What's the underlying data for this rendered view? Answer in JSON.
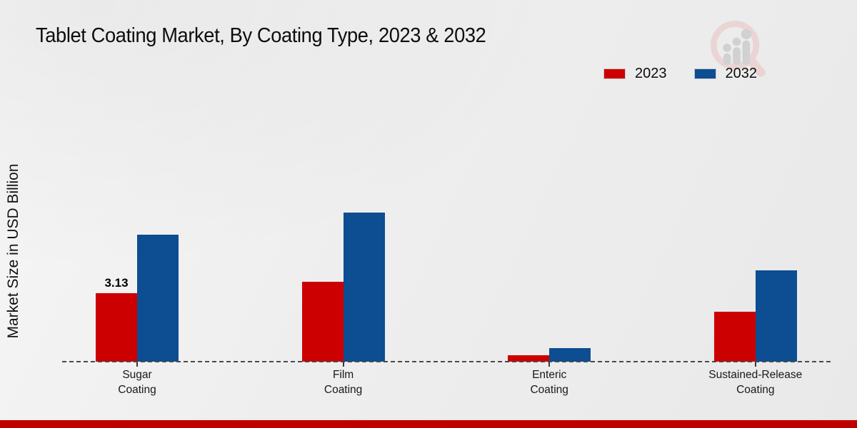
{
  "title": "Tablet Coating Market, By Coating Type, 2023 & 2032",
  "ylabel": "Market Size in USD Billion",
  "colors": {
    "series_2023": "#cc0000",
    "series_2032": "#0d4d92",
    "footer_band": "#c00000",
    "baseline": "#4a4a4a",
    "background": "#ededed"
  },
  "icons": {
    "watermark_logo": "magnifier-with-bar-chart-watermark"
  },
  "chart_data": {
    "type": "bar",
    "title": "Tablet Coating Market, By Coating Type, 2023 & 2032",
    "xlabel": "",
    "ylabel": "Market Size in USD Billion",
    "categories": [
      [
        "Sugar",
        "Coating"
      ],
      [
        "Film",
        "Coating"
      ],
      [
        "Enteric",
        "Coating"
      ],
      [
        "Sustained-Release",
        "Coating"
      ]
    ],
    "series": [
      {
        "name": "2023",
        "color": "#cc0000",
        "values": [
          3.13,
          3.65,
          0.3,
          2.28
        ]
      },
      {
        "name": "2032",
        "color": "#0d4d92",
        "values": [
          5.8,
          6.8,
          0.62,
          4.17
        ]
      }
    ],
    "bar_labels": [
      {
        "category_index": 0,
        "series_index": 0,
        "text": "3.13"
      }
    ],
    "ylim": [
      0,
      7.5
    ],
    "grid": false,
    "y_axis_ticks_visible": false,
    "baseline_style": "dashed",
    "legend_position": "top-right"
  }
}
